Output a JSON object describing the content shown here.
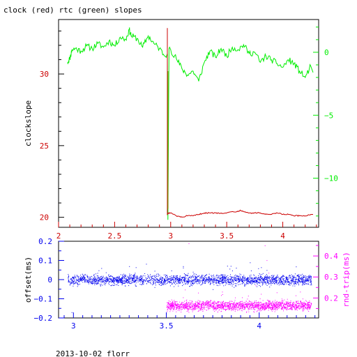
{
  "title": "clock (red) rtc (green) slopes",
  "footer": "2013-10-02 florr",
  "colors": {
    "red": "#cc0000",
    "green": "#00ee00",
    "blue": "#0000ee",
    "magenta": "#ff00ff",
    "olive": "#808000",
    "black": "#000000"
  },
  "chart_data": [
    {
      "type": "line",
      "title": "clock (red) rtc (green) slopes",
      "ylabel": "clockslope",
      "xlim": [
        2.0,
        4.32
      ],
      "ylim_left": [
        19.3,
        33.8
      ],
      "ylim_right": [
        -13.9,
        2.6
      ],
      "x_ticks": [
        2,
        2.5,
        3,
        3.5,
        4
      ],
      "x_tick_labels": [
        "2",
        "2.5",
        "3",
        "3.5",
        "4"
      ],
      "left_ticks": [
        20,
        25,
        30
      ],
      "left_tick_labels": [
        "20",
        "25",
        "30"
      ],
      "right_ticks": [
        0,
        -5,
        -10
      ],
      "right_tick_labels": [
        "0",
        "−5",
        "−10"
      ],
      "series": [
        {
          "color": "#00ee00",
          "axis": "right",
          "x": [
            2.08,
            2.1,
            2.12,
            2.15,
            2.2,
            2.25,
            2.3,
            2.35,
            2.4,
            2.45,
            2.5,
            2.55,
            2.6,
            2.63,
            2.65,
            2.7,
            2.75,
            2.8,
            2.85,
            2.9,
            2.95,
            2.96,
            2.97,
            2.975,
            2.985,
            2.99,
            3.0,
            3.05,
            3.1,
            3.15,
            3.2,
            3.25,
            3.3,
            3.35,
            3.4,
            3.45,
            3.5,
            3.55,
            3.6,
            3.65,
            3.7,
            3.75,
            3.8,
            3.85,
            3.9,
            3.95,
            4.0,
            4.05,
            4.1,
            4.15,
            4.2,
            4.25,
            4.27
          ],
          "y": [
            -0.8,
            -0.5,
            0.2,
            0.3,
            0.1,
            0.5,
            0.3,
            0.7,
            0.4,
            0.9,
            0.5,
            1.2,
            1.0,
            1.8,
            1.3,
            1.1,
            0.4,
            1.3,
            0.7,
            0.3,
            -0.3,
            -0.4,
            -0.1,
            -13.3,
            0.3,
            0.4,
            0.2,
            -0.5,
            -1.3,
            -1.8,
            -1.5,
            -2.3,
            -0.8,
            0.1,
            -0.4,
            0.3,
            -0.3,
            0.4,
            0.2,
            0.6,
            -0.1,
            0.0,
            -0.8,
            -0.3,
            -0.6,
            -0.9,
            -1.2,
            -0.6,
            -0.9,
            -1.5,
            -2.0,
            -1.1,
            -1.6
          ]
        },
        {
          "color": "#cc0000",
          "axis": "left",
          "x": [
            2.97,
            2.97,
            2.98,
            3.0,
            3.05,
            3.1,
            3.15,
            3.2,
            3.25,
            3.3,
            3.35,
            3.4,
            3.45,
            3.5,
            3.55,
            3.6,
            3.62,
            3.65,
            3.7,
            3.75,
            3.8,
            3.85,
            3.9,
            3.95,
            4.0,
            4.05,
            4.1,
            4.15,
            4.2,
            4.25,
            4.27
          ],
          "y": [
            33.2,
            20.2,
            20.3,
            20.3,
            20.1,
            20.0,
            20.1,
            20.1,
            20.2,
            20.3,
            20.3,
            20.3,
            20.3,
            20.3,
            20.4,
            20.4,
            20.5,
            20.4,
            20.3,
            20.3,
            20.3,
            20.2,
            20.2,
            20.3,
            20.2,
            20.2,
            20.1,
            20.1,
            20.1,
            20.2,
            20.2
          ]
        }
      ]
    },
    {
      "type": "scatter",
      "ylabel_left": "offset(ms)",
      "ylabel_right": "rnd-trip(ms)",
      "xlim": [
        2.92,
        4.32
      ],
      "ylim_left": [
        -0.2,
        0.2
      ],
      "ylim_right": [
        0.105,
        0.47
      ],
      "x_ticks": [
        3,
        3.5,
        4
      ],
      "x_tick_labels": [
        "3",
        "3.5",
        "4"
      ],
      "left_ticks": [
        0.2,
        0.1,
        0,
        -0.1,
        -0.2
      ],
      "left_tick_labels": [
        "0.2",
        "0.1",
        "0",
        "−0.1",
        "−0.2"
      ],
      "right_ticks": [
        0.4,
        0.3,
        0.2
      ],
      "right_tick_labels": [
        "0.4",
        "0.3",
        "0.2"
      ],
      "series": [
        {
          "color": "#0000ee",
          "axis": "left",
          "x_range": [
            2.97,
            4.28
          ],
          "center": 0.0,
          "spread": 0.013,
          "points": 2400,
          "outliers": [
            [
              2.99,
              -0.17
            ],
            [
              3.15,
              0.06
            ],
            [
              3.3,
              0.07
            ],
            [
              3.59,
              0.07
            ],
            [
              3.75,
              -0.05
            ],
            [
              3.95,
              0.09
            ],
            [
              4.04,
              0.05
            ]
          ]
        },
        {
          "color": "#ff00ff",
          "axis": "right",
          "x_range": [
            3.5,
            4.28
          ],
          "center": 0.165,
          "spread": 0.011,
          "points": 1900,
          "outliers": [
            [
              3.62,
              0.46
            ],
            [
              4.03,
              0.45
            ],
            [
              4.04,
              0.38
            ],
            [
              4.05,
              0.32
            ],
            [
              4.06,
              0.29
            ],
            [
              3.98,
              0.26
            ],
            [
              3.6,
              0.24
            ],
            [
              3.8,
              0.23
            ]
          ]
        }
      ]
    }
  ]
}
